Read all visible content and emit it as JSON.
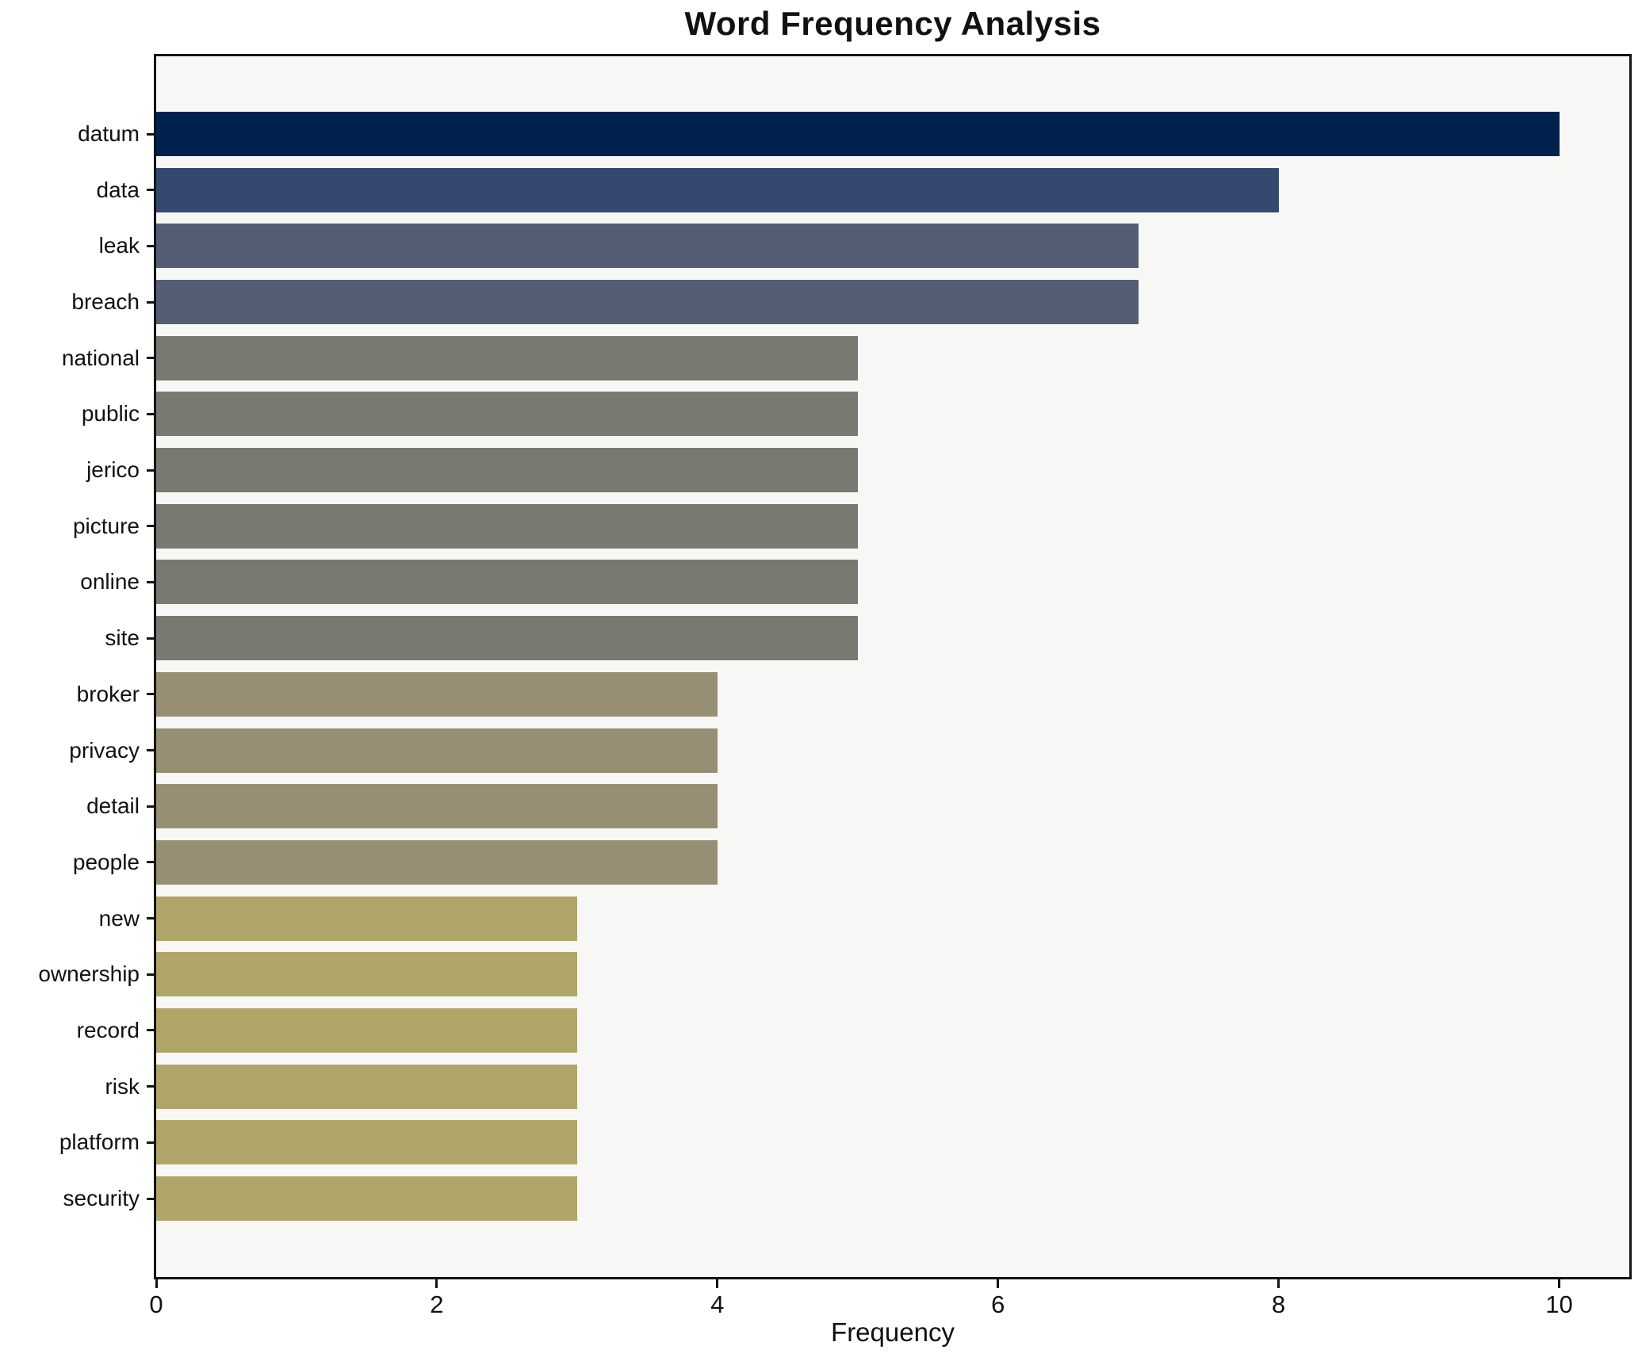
{
  "chart_data": {
    "type": "bar",
    "orientation": "horizontal",
    "title": "Word Frequency Analysis",
    "xlabel": "Frequency",
    "ylabel": "",
    "xlim": [
      0,
      10.5
    ],
    "xticks": [
      0,
      2,
      4,
      6,
      8,
      10
    ],
    "grid": false,
    "legend": false,
    "categories": [
      "datum",
      "data",
      "leak",
      "breach",
      "national",
      "public",
      "jerico",
      "picture",
      "online",
      "site",
      "broker",
      "privacy",
      "detail",
      "people",
      "new",
      "ownership",
      "record",
      "risk",
      "platform",
      "security"
    ],
    "values": [
      10,
      8,
      7,
      7,
      5,
      5,
      5,
      5,
      5,
      5,
      4,
      4,
      4,
      4,
      3,
      3,
      3,
      3,
      3,
      3
    ],
    "bar_colors": [
      "#00224D",
      "#344870",
      "#535D73",
      "#535D73",
      "#7A7971",
      "#7A7971",
      "#7A7971",
      "#7A7971",
      "#7A7971",
      "#7A7971",
      "#968F73",
      "#968F73",
      "#968F73",
      "#968F73",
      "#B0A569",
      "#B0A569",
      "#B0A569",
      "#B0A569",
      "#B0A569",
      "#B0A569"
    ],
    "colors": {
      "plot_background": "#F7F7F5",
      "figure_background": "#FFFFFF",
      "spine": "#141414",
      "text": "#111111"
    }
  }
}
